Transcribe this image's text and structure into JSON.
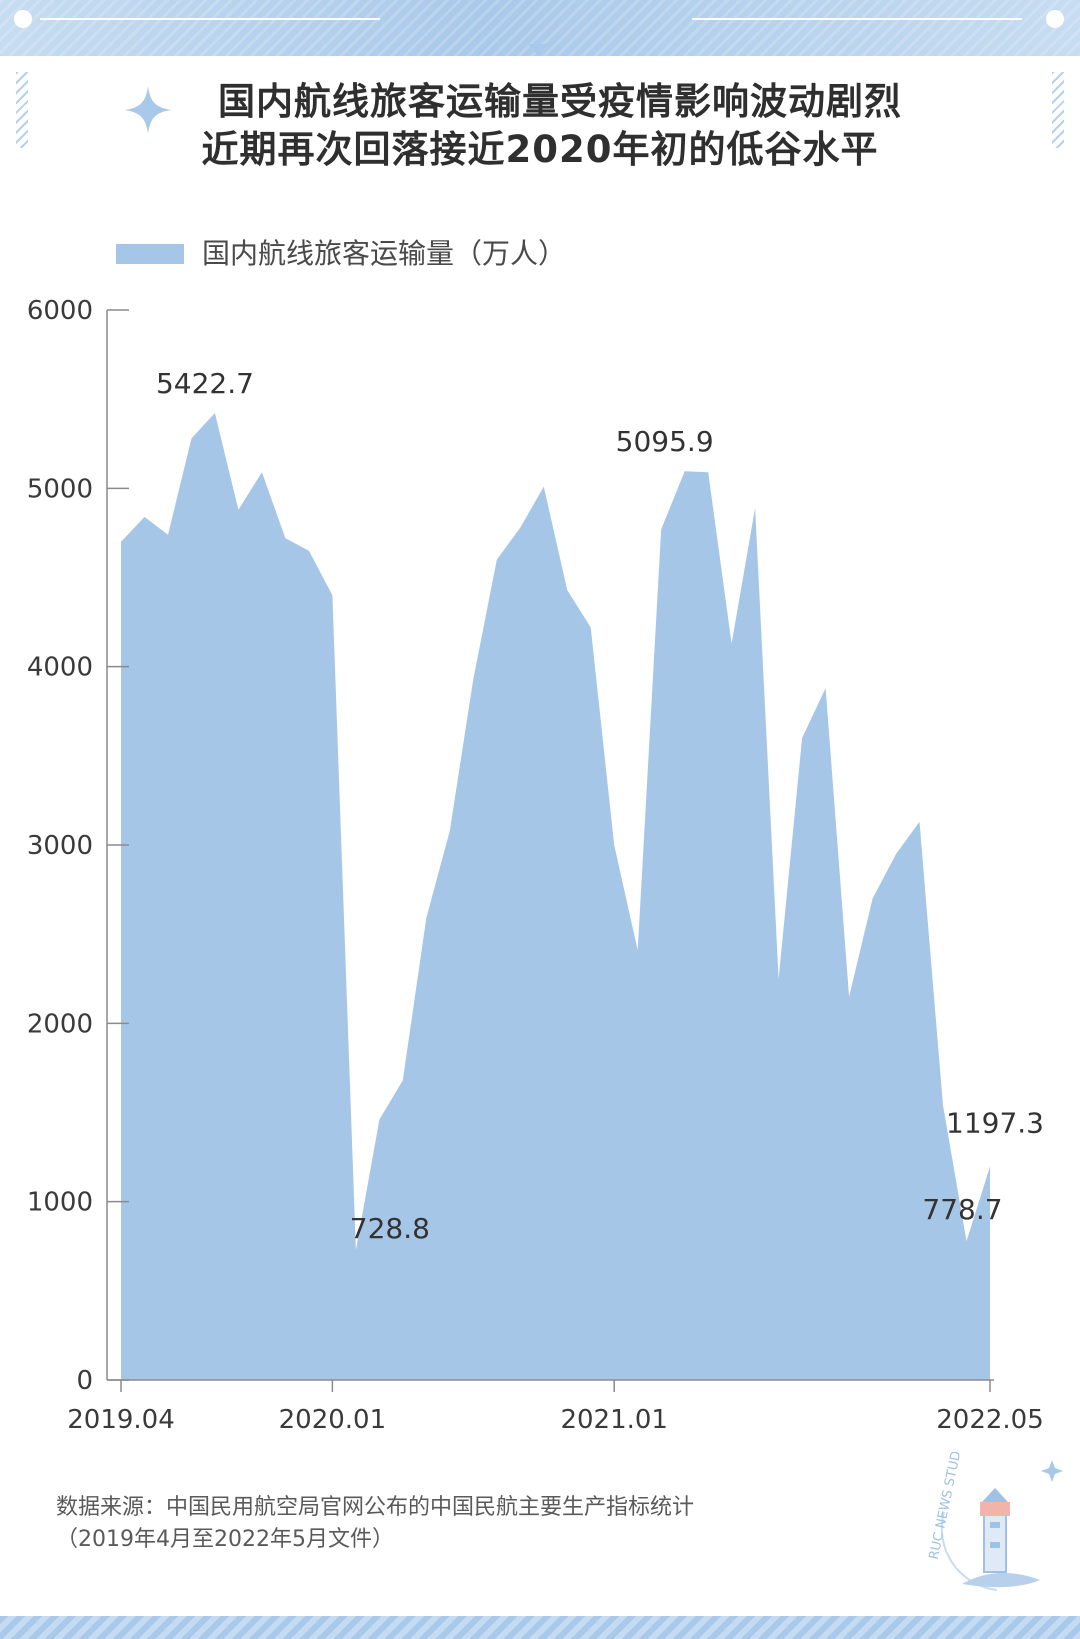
{
  "title": {
    "line1": "国内航线旅客运输量受疫情影响波动剧烈",
    "line2": "近期再次回落接近2020年初的低谷水平"
  },
  "legend": {
    "label": "国内航线旅客运输量（万人）"
  },
  "source": {
    "line1": "数据来源：中国民用航空局官网公布的中国民航主要生产指标统计",
    "line2": "（2019年4月至2022年5月文件）"
  },
  "logo_text": "RUC NEWS STUDIO",
  "colors": {
    "area": "#a6c6e8",
    "accent": "#a9c9ea",
    "text": "#333333"
  },
  "chart_data": {
    "type": "area",
    "series": [
      {
        "name": "国内航线旅客运输量（万人）",
        "x": [
          "2019.04",
          "2019.05",
          "2019.06",
          "2019.07",
          "2019.08",
          "2019.09",
          "2019.10",
          "2019.11",
          "2019.12",
          "2020.01",
          "2020.02",
          "2020.03",
          "2020.04",
          "2020.05",
          "2020.06",
          "2020.07",
          "2020.08",
          "2020.09",
          "2020.10",
          "2020.11",
          "2020.12",
          "2021.01",
          "2021.02",
          "2021.03",
          "2021.04",
          "2021.05",
          "2021.06",
          "2021.07",
          "2021.08",
          "2021.09",
          "2021.10",
          "2021.11",
          "2021.12",
          "2022.01",
          "2022.02",
          "2022.03",
          "2022.04",
          "2022.05"
        ],
        "values": [
          4700,
          4840,
          4740,
          5280,
          5422.7,
          4880,
          5090,
          4720,
          4650,
          4400,
          728.8,
          1460,
          1680,
          2590,
          3080,
          3930,
          4600,
          4780,
          5010,
          4430,
          4220,
          3000,
          2410,
          4770,
          5095.9,
          5090,
          4130,
          4890,
          2250,
          3600,
          3880,
          2150,
          2700,
          2950,
          3130,
          1540,
          778.7,
          1197.3
        ]
      }
    ],
    "data_labels": [
      {
        "x": "2019.08",
        "text": "5422.7"
      },
      {
        "x": "2020.02",
        "text": "728.8"
      },
      {
        "x": "2021.04",
        "text": "5095.9"
      },
      {
        "x": "2022.04",
        "text": "778.7"
      },
      {
        "x": "2022.05",
        "text": "1197.3"
      }
    ],
    "yticks": [
      0,
      1000,
      2000,
      3000,
      4000,
      5000,
      6000
    ],
    "ylim": [
      0,
      6000
    ],
    "xtick_labels": [
      "2019.04",
      "2020.01",
      "2021.01",
      "2022.05"
    ],
    "xlabel": "",
    "ylabel": "",
    "grid": false,
    "legend_position": "top-left"
  }
}
